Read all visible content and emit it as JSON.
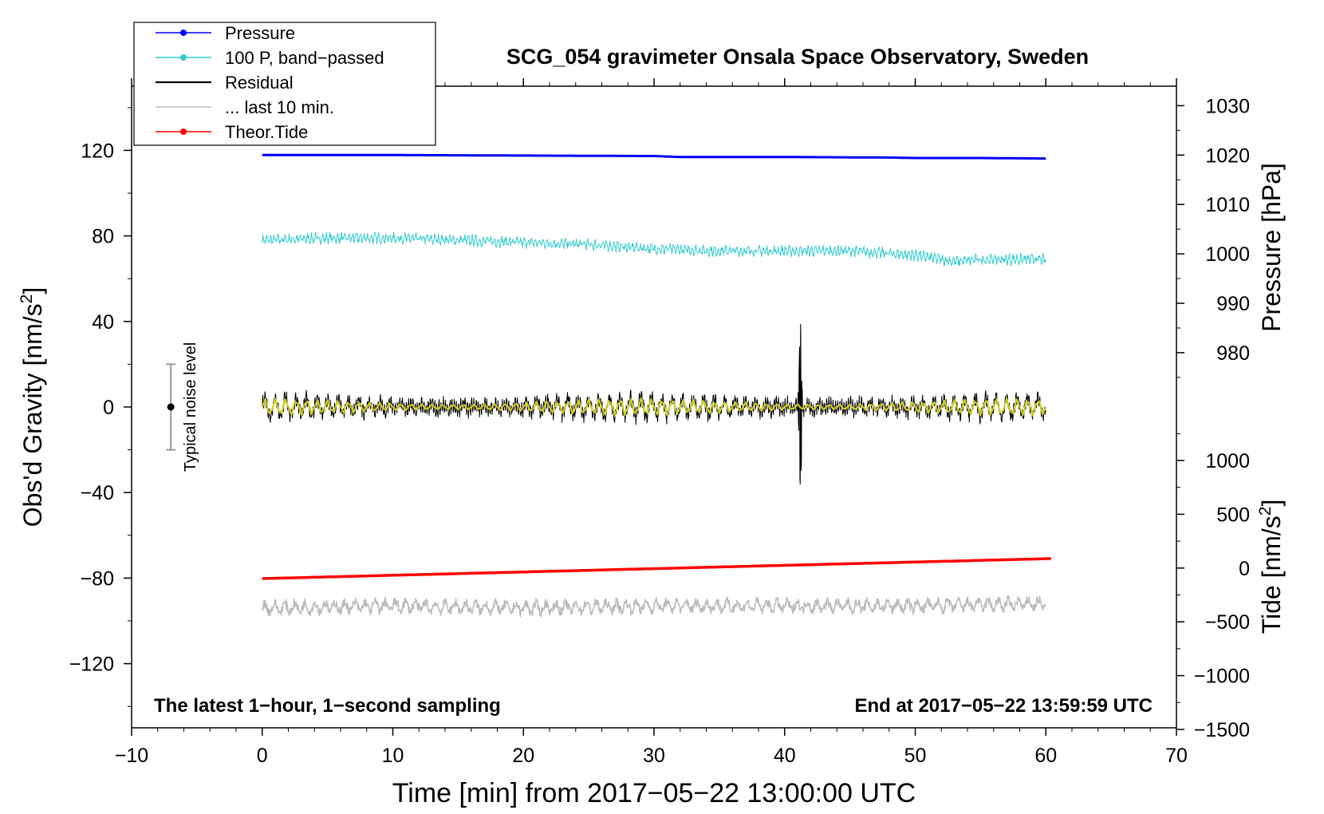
{
  "chart_data": {
    "type": "line",
    "title": "SCG_054 gravimeter Onsala Space Observatory, Sweden",
    "xlabel": "Time [min] from 2017−05−22 13:00:00 UTC",
    "ylabel_left": "Obs'd Gravity [nm/s",
    "ylabel_left_sup": "2",
    "ylabel_left_close": "]",
    "ylabel_right_pressure": "Pressure [hPa]",
    "ylabel_right_tide": "Tide [nm/s",
    "ylabel_right_tide_sup": "2",
    "ylabel_right_tide_close": "]",
    "xlim": [
      -10,
      70
    ],
    "ylim_left": [
      -150,
      150
    ],
    "x_ticks": [
      "−10",
      "0",
      "10",
      "20",
      "30",
      "40",
      "50",
      "60",
      "70"
    ],
    "x_tick_values": [
      -10,
      0,
      10,
      20,
      30,
      40,
      50,
      60,
      70
    ],
    "y_ticks_left": [
      "120",
      "80",
      "40",
      "0",
      "−40",
      "−80",
      "−120"
    ],
    "y_tick_values_left": [
      120,
      80,
      40,
      0,
      -40,
      -80,
      -120
    ],
    "pressure_axis": {
      "ticks": [
        "1030",
        "1020",
        "1010",
        "1000",
        "990",
        "980"
      ],
      "values": [
        1030,
        1020,
        1010,
        1000,
        990,
        980
      ],
      "gravity_at_1000": 71.6,
      "gravity_per_hpa": 2.31
    },
    "tide_axis": {
      "ticks": [
        "1000",
        "500",
        "0",
        "−500",
        "−1000",
        "−1500"
      ],
      "values": [
        1000,
        500,
        0,
        -500,
        -1000,
        -1500
      ],
      "gravity_at_0": -75.3,
      "gravity_per_nm": 0.0503
    },
    "noise_bar": {
      "x": -7,
      "center": 0,
      "low": -20,
      "high": 20,
      "label": "Typical noise level"
    },
    "bottom_left_note": "The latest 1−hour, 1−second sampling",
    "bottom_right_note": "End at 2017−05−22 13:59:59 UTC",
    "legend": [
      {
        "label": "Pressure",
        "color": "#0000ff",
        "marker": true
      },
      {
        "label": "100 P, band−passed",
        "color": "#33cccc",
        "marker": true
      },
      {
        "label": "Residual",
        "color": "#000000",
        "marker": false
      },
      {
        "label": "... last 10 min.",
        "color": "#bbbbbb",
        "marker": false
      },
      {
        "label": "Theor.Tide",
        "color": "#ff0000",
        "marker": true
      }
    ],
    "series": [
      {
        "name": "Pressure",
        "color": "#0000ff",
        "axis": "pressure",
        "width": 3,
        "x": [
          0,
          10,
          20,
          30,
          32,
          40,
          48,
          50,
          55,
          60
        ],
        "y": [
          1020.0,
          1020.0,
          1019.9,
          1019.8,
          1019.6,
          1019.6,
          1019.5,
          1019.4,
          1019.4,
          1019.3
        ]
      },
      {
        "name": "100 P, band−passed",
        "color": "#33cccc",
        "axis": "gravity",
        "width": 1,
        "x": [
          0,
          5,
          10,
          15,
          20,
          25,
          30,
          35,
          40,
          45,
          50,
          53,
          55,
          60
        ],
        "y": [
          78,
          79,
          79,
          78,
          77,
          76,
          74,
          73,
          73,
          73,
          71,
          68,
          69,
          69
        ],
        "noise": 2.5,
        "freq": 3.5
      },
      {
        "name": "Residual",
        "color": "#000000",
        "axis": "gravity",
        "width": 1,
        "x": [
          0,
          10,
          20,
          30,
          40,
          50,
          60
        ],
        "y": [
          0,
          0,
          0,
          0,
          0,
          0,
          0
        ],
        "noise": 3.5,
        "freq": 6,
        "event": {
          "x": 41.2,
          "peak": 36,
          "trough": -37
        }
      },
      {
        "name": "Residual (smoothed)",
        "color": "#cccc22",
        "axis": "gravity",
        "width": 2.2,
        "x": [
          0,
          10,
          20,
          30,
          40,
          50,
          60
        ],
        "y": [
          0,
          0,
          0,
          0,
          0,
          0,
          0
        ],
        "amplitude": 4,
        "freq": 1.25
      },
      {
        "name": "Theor.Tide",
        "color": "#ff0000",
        "axis": "tide",
        "width": 3.5,
        "x": [
          0,
          60.4
        ],
        "y": [
          -98,
          88
        ]
      },
      {
        "name": "... last 10 min.",
        "color": "#bbbbbb",
        "axis": "gravity",
        "width": 1.6,
        "x": [
          0,
          10,
          20,
          30,
          40,
          50,
          60
        ],
        "y": [
          -94,
          -93,
          -94,
          -93,
          -93,
          -93,
          -92
        ],
        "noise": 3.5,
        "freq": 1.3
      }
    ]
  }
}
